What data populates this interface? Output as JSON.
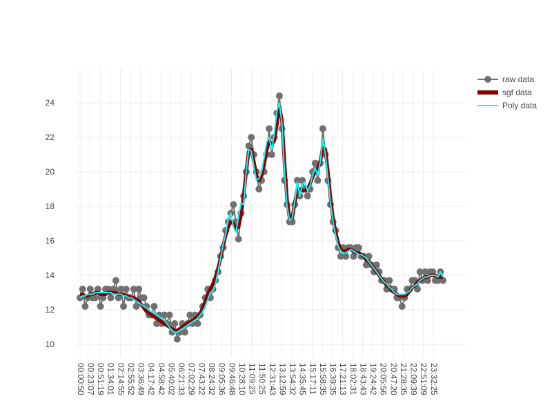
{
  "chart_data": {
    "type": "line",
    "xlabel": "",
    "ylabel": "",
    "title": "",
    "x_ticks": [
      "00:00:50",
      "00:23:07",
      "00:51:19",
      "01:34:01",
      "02:14:55",
      "02:55:52",
      "03:36:49",
      "04:17:42",
      "04:58:42",
      "05:40:02",
      "06:21:33",
      "07:02:29",
      "07:43:22",
      "08:24:32",
      "09:05:36",
      "09:46:48",
      "10:28:10",
      "11:09:25",
      "11:50:25",
      "12:31:43",
      "13:12:59",
      "13:54:32",
      "14:35:45",
      "15:17:11",
      "15:58:35",
      "16:39:35",
      "17:21:13",
      "18:02:31",
      "18:43:43",
      "19:24:42",
      "20:05:56",
      "20:47:20",
      "21:28:35",
      "22:09:39",
      "22:51:09",
      "23:32:25"
    ],
    "y_ticks": [
      10,
      12,
      14,
      16,
      18,
      20,
      22,
      24
    ],
    "ylim": [
      9.3,
      26
    ],
    "grid": true,
    "legend_position": "top-right",
    "series": [
      {
        "name": "raw data",
        "color": "#707070",
        "kind": "lines+markers",
        "values": [
          12.7,
          13.2,
          12.2,
          12.7,
          13.2,
          12.7,
          12.7,
          13.2,
          12.2,
          12.7,
          13.2,
          13.2,
          12.7,
          13.2,
          13.7,
          12.7,
          13.2,
          12.2,
          13.2,
          12.7,
          12.7,
          13.2,
          12.2,
          13.2,
          12.7,
          12.7,
          12.2,
          11.7,
          11.7,
          12.2,
          11.2,
          11.7,
          11.2,
          11.7,
          11.2,
          11.7,
          10.7,
          11.2,
          10.3,
          10.7,
          11.2,
          10.7,
          11.2,
          11.7,
          11.2,
          11.7,
          11.2,
          11.7,
          12.2,
          12.7,
          13.2,
          12.7,
          13.2,
          13.7,
          14.2,
          15.1,
          15.6,
          16.6,
          17.1,
          17.6,
          18.1,
          17.1,
          16.1,
          17.6,
          18.6,
          20.0,
          21.5,
          22.0,
          21.0,
          20.0,
          19.0,
          19.5,
          20.0,
          21.0,
          22.5,
          21.0,
          22.0,
          23.4,
          24.4,
          22.5,
          19.5,
          18.1,
          17.1,
          17.1,
          18.1,
          19.5,
          18.6,
          19.5,
          19.0,
          18.6,
          19.0,
          20.0,
          20.5,
          19.5,
          20.5,
          22.5,
          21.0,
          19.5,
          18.1,
          17.1,
          16.6,
          15.6,
          15.1,
          15.6,
          15.1,
          15.6,
          15.6,
          15.1,
          15.6,
          15.6,
          15.1,
          15.1,
          14.6,
          15.1,
          14.6,
          14.2,
          14.6,
          14.2,
          13.7,
          13.7,
          13.2,
          13.7,
          13.2,
          13.2,
          12.7,
          12.7,
          12.2,
          12.7,
          13.2,
          13.2,
          13.7,
          13.7,
          13.2,
          14.2,
          13.7,
          14.2,
          13.7,
          14.2,
          14.2,
          13.7,
          13.7,
          14.2,
          13.7
        ]
      },
      {
        "name": "sgf data",
        "color": "#8b0000",
        "kind": "lines",
        "values": [
          12.9,
          12.9,
          12.8,
          12.8,
          12.9,
          12.9,
          13.0,
          13.0,
          12.9,
          12.9,
          12.9,
          13.0,
          13.0,
          13.0,
          13.0,
          12.9,
          12.9,
          12.9,
          12.8,
          12.8,
          12.7,
          12.7,
          12.6,
          12.5,
          12.3,
          12.1,
          11.9,
          11.8,
          11.7,
          11.6,
          11.5,
          11.4,
          11.3,
          11.2,
          11.1,
          11.0,
          10.9,
          10.8,
          10.8,
          10.9,
          11.0,
          11.1,
          11.2,
          11.3,
          11.4,
          11.5,
          11.6,
          11.8,
          12.1,
          12.5,
          12.9,
          13.2,
          13.5,
          13.9,
          14.4,
          15.0,
          15.7,
          16.3,
          16.8,
          17.1,
          17.0,
          16.7,
          16.8,
          17.5,
          18.6,
          20.0,
          21.2,
          21.3,
          20.6,
          19.8,
          19.5,
          19.8,
          20.4,
          21.2,
          21.8,
          21.6,
          21.8,
          22.7,
          23.8,
          23.0,
          20.6,
          18.4,
          17.3,
          17.3,
          18.2,
          19.0,
          19.0,
          18.9,
          18.9,
          19.0,
          19.3,
          19.7,
          20.0,
          20.2,
          20.6,
          21.4,
          21.3,
          20.0,
          18.5,
          17.3,
          16.5,
          15.9,
          15.5,
          15.4,
          15.4,
          15.5,
          15.5,
          15.4,
          15.3,
          15.3,
          15.2,
          15.1,
          14.9,
          14.8,
          14.6,
          14.4,
          14.2,
          14.0,
          13.8,
          13.6,
          13.4,
          13.3,
          13.1,
          13.0,
          12.9,
          12.8,
          12.8,
          12.8,
          12.9,
          13.1,
          13.3,
          13.4,
          13.6,
          13.7,
          13.8,
          13.9,
          13.9,
          14.0,
          14.0,
          14.0,
          13.9,
          13.9,
          13.9
        ]
      },
      {
        "name": "Poly data",
        "color": "#00ffff",
        "kind": "lines",
        "values": [
          12.7,
          12.8,
          12.8,
          12.9,
          12.9,
          12.9,
          13.0,
          13.0,
          13.0,
          13.0,
          13.0,
          13.0,
          13.0,
          12.9,
          12.9,
          12.9,
          12.9,
          12.8,
          12.8,
          12.7,
          12.7,
          12.6,
          12.5,
          12.4,
          12.3,
          12.2,
          12.1,
          12.0,
          11.9,
          11.8,
          11.7,
          11.6,
          11.5,
          11.4,
          11.2,
          11.0,
          10.8,
          10.7,
          10.7,
          10.8,
          10.9,
          11.0,
          11.1,
          11.2,
          11.3,
          11.4,
          11.5,
          11.7,
          11.9,
          12.2,
          12.6,
          13.0,
          13.1,
          13.5,
          14.2,
          15.0,
          15.8,
          16.4,
          17.3,
          17.6,
          16.8,
          16.5,
          17.4,
          18.2,
          18.1,
          20.0,
          21.3,
          21.2,
          20.3,
          19.5,
          19.6,
          20.0,
          20.8,
          21.7,
          22.0,
          21.3,
          22.2,
          23.5,
          24.0,
          22.8,
          20.0,
          18.0,
          17.2,
          17.3,
          18.3,
          19.4,
          18.6,
          19.3,
          19.4,
          18.9,
          19.2,
          19.8,
          20.2,
          19.8,
          20.6,
          21.9,
          21.0,
          19.6,
          18.2,
          17.1,
          16.3,
          15.7,
          15.4,
          15.3,
          15.3,
          15.4,
          15.5,
          15.4,
          15.3,
          15.2,
          15.2,
          15.1,
          15.0,
          14.8,
          14.6,
          14.4,
          14.2,
          14.0,
          13.8,
          13.6,
          13.5,
          13.3,
          13.2,
          13.0,
          12.9,
          12.9,
          12.9,
          12.9,
          13.0,
          13.1,
          13.3,
          13.4,
          13.5,
          13.7,
          13.8,
          13.9,
          13.9,
          14.0,
          14.0,
          14.0,
          13.9,
          14.2,
          13.9
        ]
      }
    ]
  }
}
